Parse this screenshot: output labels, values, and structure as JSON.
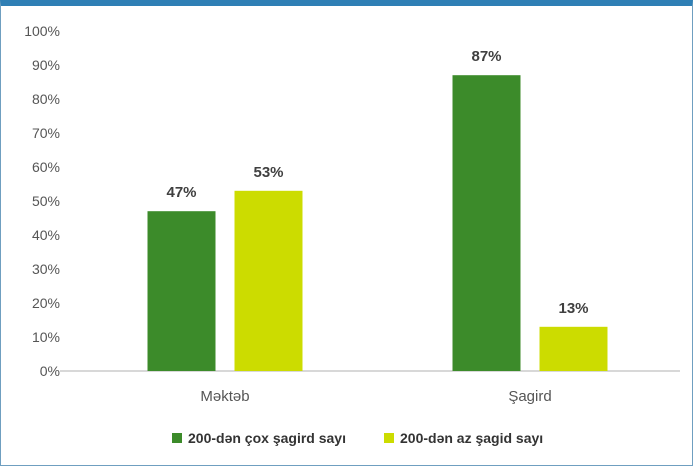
{
  "chart_data": {
    "type": "bar",
    "categories": [
      "Məktəb",
      "Şagird"
    ],
    "series": [
      {
        "name": "200-dən çox şagird sayı",
        "values": [
          47,
          87
        ],
        "labels": [
          "47%",
          "87%"
        ],
        "color": "#3c8b2a"
      },
      {
        "name": "200-dən az şagid sayı",
        "values": [
          53,
          13
        ],
        "labels": [
          "53%",
          "13%"
        ],
        "color": "#ccdc00"
      }
    ],
    "y_ticks": [
      "0%",
      "10%",
      "20%",
      "30%",
      "40%",
      "50%",
      "60%",
      "70%",
      "80%",
      "90%",
      "100%"
    ],
    "ylim": [
      0,
      100
    ],
    "grid": false,
    "legend_position": "bottom"
  },
  "colors": {
    "frame_top": "#2f7fb5",
    "axis": "#b0b0b0"
  }
}
